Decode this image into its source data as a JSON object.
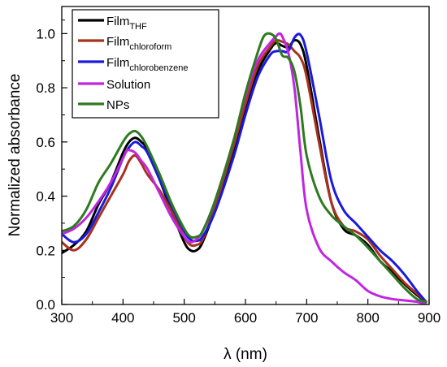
{
  "chart_data": {
    "type": "line",
    "title": "",
    "xlabel": "λ (nm)",
    "ylabel": "Normalized absorbance",
    "xlim": [
      300,
      900
    ],
    "ylim": [
      0.0,
      1.1
    ],
    "x_ticks": [
      300,
      400,
      500,
      600,
      700,
      800,
      900
    ],
    "x_tick_labels": [
      "300",
      "400",
      "500",
      "600",
      "700",
      "800",
      "900"
    ],
    "y_ticks": [
      0.0,
      0.2,
      0.4,
      0.6,
      0.8,
      1.0
    ],
    "y_tick_labels": [
      "0.0",
      "0.2",
      "0.4",
      "0.6",
      "0.8",
      "1.0"
    ],
    "grid": false,
    "legend_position": "top-left",
    "series": [
      {
        "name": "Film",
        "subscript": "THF",
        "color": "#000000",
        "x": [
          300,
          320,
          340,
          360,
          380,
          400,
          410,
          420,
          430,
          440,
          460,
          480,
          500,
          510,
          520,
          530,
          550,
          580,
          600,
          620,
          640,
          650,
          660,
          670,
          680,
          690,
          700,
          720,
          740,
          760,
          780,
          800,
          820,
          840,
          860,
          880,
          895
        ],
        "y": [
          0.19,
          0.22,
          0.27,
          0.37,
          0.45,
          0.56,
          0.6,
          0.615,
          0.6,
          0.57,
          0.46,
          0.34,
          0.23,
          0.2,
          0.2,
          0.23,
          0.35,
          0.56,
          0.72,
          0.86,
          0.94,
          0.965,
          0.955,
          0.95,
          0.975,
          0.96,
          0.88,
          0.62,
          0.38,
          0.28,
          0.255,
          0.22,
          0.16,
          0.12,
          0.075,
          0.035,
          0.01
        ]
      },
      {
        "name": "Film",
        "subscript": "chloroform",
        "color": "#a8321f",
        "x": [
          300,
          320,
          340,
          360,
          380,
          400,
          410,
          420,
          430,
          440,
          460,
          480,
          500,
          510,
          520,
          530,
          550,
          580,
          600,
          620,
          640,
          650,
          660,
          670,
          680,
          690,
          700,
          720,
          740,
          760,
          780,
          800,
          820,
          840,
          860,
          880,
          895
        ],
        "y": [
          0.23,
          0.2,
          0.24,
          0.32,
          0.4,
          0.48,
          0.53,
          0.55,
          0.52,
          0.48,
          0.42,
          0.34,
          0.25,
          0.22,
          0.22,
          0.24,
          0.36,
          0.58,
          0.74,
          0.88,
          0.95,
          0.975,
          0.97,
          0.96,
          0.935,
          0.91,
          0.84,
          0.6,
          0.38,
          0.29,
          0.27,
          0.24,
          0.18,
          0.13,
          0.08,
          0.04,
          0.01
        ]
      },
      {
        "name": "Film",
        "subscript": "chlorobenzene",
        "color": "#1a1adc",
        "x": [
          300,
          320,
          340,
          360,
          380,
          400,
          410,
          420,
          430,
          440,
          460,
          480,
          500,
          510,
          520,
          530,
          550,
          580,
          600,
          620,
          640,
          650,
          660,
          670,
          680,
          690,
          700,
          720,
          740,
          760,
          780,
          800,
          820,
          840,
          860,
          880,
          895
        ],
        "y": [
          0.26,
          0.23,
          0.26,
          0.34,
          0.43,
          0.54,
          0.58,
          0.6,
          0.585,
          0.56,
          0.46,
          0.36,
          0.27,
          0.24,
          0.235,
          0.25,
          0.34,
          0.54,
          0.7,
          0.84,
          0.92,
          0.935,
          0.935,
          0.935,
          0.985,
          0.995,
          0.93,
          0.7,
          0.46,
          0.35,
          0.3,
          0.25,
          0.2,
          0.16,
          0.11,
          0.05,
          0.01
        ]
      },
      {
        "name": "Solution",
        "subscript": "",
        "color": "#c026e0",
        "x": [
          300,
          320,
          340,
          360,
          380,
          400,
          405,
          410,
          420,
          430,
          440,
          460,
          480,
          500,
          510,
          520,
          530,
          550,
          580,
          600,
          620,
          640,
          650,
          655,
          660,
          670,
          680,
          690,
          700,
          720,
          740,
          760,
          780,
          800,
          820,
          840,
          860,
          880,
          895
        ],
        "y": [
          0.26,
          0.28,
          0.32,
          0.38,
          0.45,
          0.54,
          0.565,
          0.57,
          0.56,
          0.53,
          0.5,
          0.41,
          0.32,
          0.25,
          0.23,
          0.24,
          0.27,
          0.38,
          0.6,
          0.77,
          0.9,
          0.965,
          0.99,
          1.0,
          0.99,
          0.93,
          0.8,
          0.56,
          0.35,
          0.21,
          0.16,
          0.12,
          0.09,
          0.05,
          0.03,
          0.02,
          0.015,
          0.01,
          0.0
        ]
      },
      {
        "name": "NPs",
        "subscript": "",
        "color": "#2d7a1f",
        "x": [
          300,
          320,
          340,
          360,
          380,
          400,
          410,
          420,
          430,
          440,
          460,
          480,
          500,
          510,
          520,
          530,
          550,
          580,
          600,
          620,
          630,
          640,
          650,
          660,
          670,
          680,
          690,
          700,
          720,
          740,
          760,
          780,
          800,
          820,
          840,
          860,
          880,
          895
        ],
        "y": [
          0.27,
          0.29,
          0.35,
          0.45,
          0.52,
          0.6,
          0.63,
          0.64,
          0.62,
          0.58,
          0.48,
          0.37,
          0.28,
          0.25,
          0.25,
          0.27,
          0.38,
          0.6,
          0.78,
          0.93,
          0.99,
          1.0,
          0.98,
          0.92,
          0.91,
          0.86,
          0.73,
          0.55,
          0.4,
          0.33,
          0.29,
          0.255,
          0.21,
          0.16,
          0.11,
          0.06,
          0.02,
          0.01
        ]
      }
    ]
  }
}
